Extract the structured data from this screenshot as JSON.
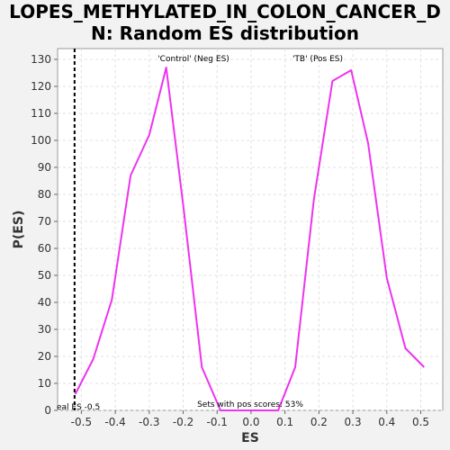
{
  "chart_data": {
    "type": "line",
    "title_line1": "LOPES_METHYLATED_IN_COLON_CANCER_D",
    "title_line2": "N: Random ES distribution",
    "xlabel": "ES",
    "ylabel": "P(ES)",
    "xlim": [
      -0.57,
      0.565
    ],
    "ylim": [
      0,
      134
    ],
    "xticks": [
      -0.5,
      -0.4,
      -0.3,
      -0.2,
      -0.1,
      0.0,
      0.1,
      0.2,
      0.3,
      0.4,
      0.5
    ],
    "xtick_labels": [
      "-0.5",
      "-0.4",
      "-0.3",
      "-0.2",
      "-0.1",
      "0.0",
      "0.1",
      "0.2",
      "0.3",
      "0.4",
      "0.5"
    ],
    "yticks": [
      0,
      10,
      20,
      30,
      40,
      50,
      60,
      70,
      80,
      90,
      100,
      110,
      120,
      130
    ],
    "ytick_labels": [
      "0",
      "10",
      "20",
      "30",
      "40",
      "50",
      "60",
      "70",
      "80",
      "90",
      "100",
      "110",
      "120",
      "130"
    ],
    "grid": true,
    "series": [
      {
        "color": "#ee33ee",
        "x": [
          -0.518,
          -0.465,
          -0.41,
          -0.355,
          -0.3,
          -0.25,
          -0.198,
          -0.145,
          -0.09,
          0.0,
          0.08,
          0.13,
          0.185,
          0.24,
          0.295,
          0.345,
          0.4,
          0.455,
          0.51
        ],
        "y": [
          6,
          19,
          41,
          87,
          102,
          127,
          74,
          16,
          0,
          0,
          0,
          16,
          78,
          122,
          126,
          99,
          49,
          23,
          16
        ]
      }
    ],
    "observed_es": -0.52,
    "observed_label": "eal ES -0.5",
    "annotations": {
      "neg_label": "'Control' (Neg ES)",
      "neg_color": "#2222cc",
      "pos_label": "'TB' (Pos ES)",
      "pos_color": "#dd2222",
      "footer": "Sets with pos scores: 53%"
    }
  }
}
